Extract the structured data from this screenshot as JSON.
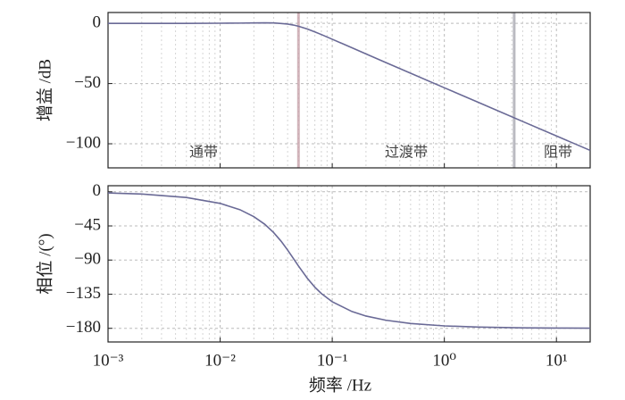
{
  "chart_data": [
    {
      "type": "line",
      "ylabel": "增益 /dB",
      "color": "#6a6a96",
      "x": [
        0.001,
        0.002,
        0.005,
        0.01,
        0.015,
        0.02,
        0.025,
        0.03,
        0.035,
        0.04,
        0.045,
        0.05,
        0.06,
        0.07,
        0.08,
        0.1,
        0.15,
        0.2,
        0.3,
        0.5,
        1,
        2,
        5,
        10,
        20
      ],
      "values": [
        0,
        0,
        0,
        0.1,
        0.2,
        0.3,
        0.4,
        0.3,
        -0.1,
        -0.6,
        -1.4,
        -2.4,
        -4.7,
        -7.1,
        -9.3,
        -13.2,
        -20.3,
        -25.4,
        -32.5,
        -41.4,
        -53.5,
        -65.5,
        -81.5,
        -93.5,
        -105.5
      ],
      "xlim": [
        0.001,
        20
      ],
      "xticks": [
        0.001,
        0.01,
        0.1,
        1,
        10
      ],
      "xminor": [
        0.002,
        0.003,
        0.004,
        0.005,
        0.006,
        0.007,
        0.008,
        0.009,
        0.02,
        0.03,
        0.04,
        0.05,
        0.06,
        0.07,
        0.08,
        0.09,
        0.2,
        0.3,
        0.4,
        0.5,
        0.6,
        0.7,
        0.8,
        0.9,
        2,
        3,
        4,
        5,
        6,
        7,
        8,
        9,
        20
      ],
      "ylim": [
        -120,
        9
      ],
      "yticks": [
        {
          "value": 0,
          "label": "0"
        },
        {
          "value": -50,
          "label": "−50"
        },
        {
          "value": -100,
          "label": "−100"
        }
      ],
      "vlines": [
        {
          "x": 0.05,
          "color": "#c9a4ac"
        },
        {
          "x": 4.2,
          "color": "#a9a9b2"
        }
      ],
      "annotations": [
        "通带",
        "过渡带",
        "阻带"
      ],
      "grid": true
    },
    {
      "type": "line",
      "ylabel": "相位 /(°)",
      "xlabel": "频率 /Hz",
      "color": "#6a6a96",
      "x": [
        0.001,
        0.002,
        0.005,
        0.01,
        0.015,
        0.02,
        0.025,
        0.03,
        0.035,
        0.04,
        0.045,
        0.05,
        0.06,
        0.07,
        0.08,
        0.1,
        0.15,
        0.2,
        0.3,
        0.5,
        1,
        2,
        5,
        10,
        20
      ],
      "values": [
        -1.5,
        -3,
        -7.5,
        -15.3,
        -23.6,
        -32.8,
        -42.8,
        -53.7,
        -65.2,
        -76.8,
        -87.9,
        -97.9,
        -114.1,
        -125.8,
        -134.1,
        -145,
        -157.9,
        -163.8,
        -169.3,
        -173.6,
        -176.8,
        -178.4,
        -179.4,
        -179.7,
        -179.8
      ],
      "xlim": [
        0.001,
        20
      ],
      "xticks": [
        {
          "value": 0.001,
          "label": "10⁻³"
        },
        {
          "value": 0.01,
          "label": "10⁻²"
        },
        {
          "value": 0.1,
          "label": "10⁻¹"
        },
        {
          "value": 1,
          "label": "10⁰"
        },
        {
          "value": 10,
          "label": "10¹"
        }
      ],
      "xminor": [
        0.002,
        0.003,
        0.004,
        0.005,
        0.006,
        0.007,
        0.008,
        0.009,
        0.02,
        0.03,
        0.04,
        0.05,
        0.06,
        0.07,
        0.08,
        0.09,
        0.2,
        0.3,
        0.4,
        0.5,
        0.6,
        0.7,
        0.8,
        0.9,
        2,
        3,
        4,
        5,
        6,
        7,
        8,
        9,
        20
      ],
      "ylim": [
        -198,
        8
      ],
      "yticks": [
        {
          "value": 0,
          "label": "0"
        },
        {
          "value": -45,
          "label": "−45"
        },
        {
          "value": -90,
          "label": "−90"
        },
        {
          "value": -135,
          "label": "−135"
        },
        {
          "value": -180,
          "label": "−180"
        }
      ],
      "grid": true
    }
  ]
}
